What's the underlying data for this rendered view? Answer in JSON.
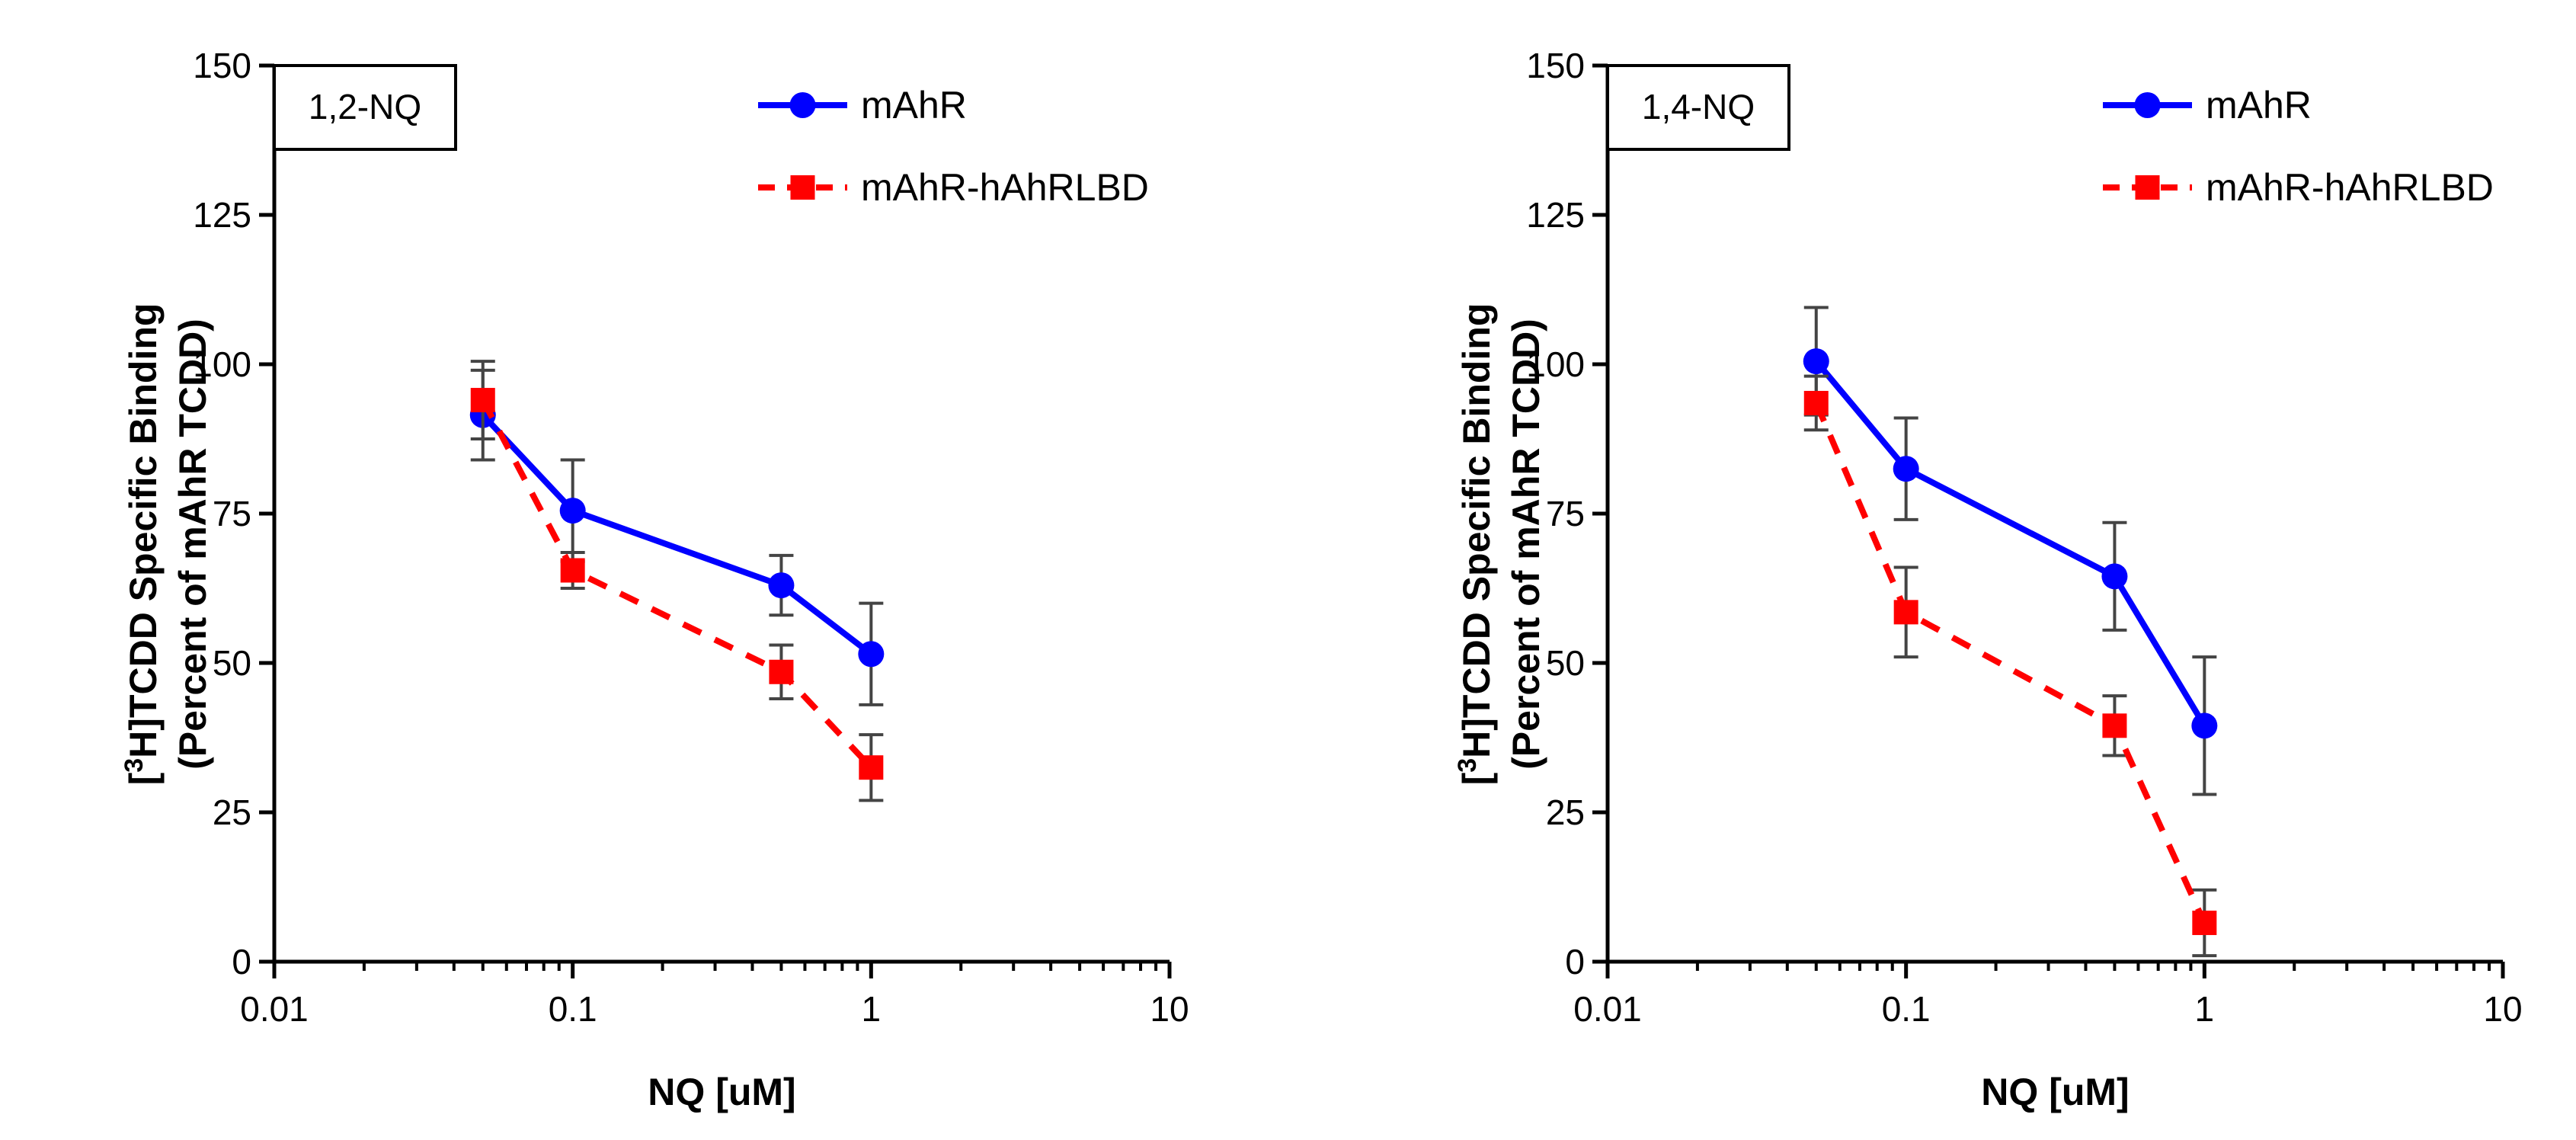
{
  "chart_data": [
    {
      "type": "line",
      "panel_label": "1,2-NQ",
      "xscale": "log",
      "xlim": [
        0.01,
        10
      ],
      "ylim": [
        0,
        150
      ],
      "x_ticks": [
        0.01,
        0.1,
        1,
        10
      ],
      "x_tick_labels": [
        "0.01",
        "0.1",
        "1",
        "10"
      ],
      "y_ticks": [
        0,
        25,
        50,
        75,
        100,
        125,
        150
      ],
      "y_tick_labels": [
        "0",
        "25",
        "50",
        "75",
        "100",
        "125",
        "150"
      ],
      "xlabel": "NQ [uM]",
      "ylabel_line1_prefix": "[",
      "ylabel_line1_sup": "3",
      "ylabel_line1_rest": "H]TCDD Specific Binding",
      "ylabel_line2": "(Percent of mAhR TCDD)",
      "legend_position": "top-right",
      "series": [
        {
          "name": "mAhR",
          "color": "#0000ff",
          "marker": "circle",
          "line_style": "solid",
          "x": [
            0.05,
            0.1,
            0.5,
            1
          ],
          "y": [
            91.5,
            75.5,
            63,
            51.5
          ],
          "err": [
            7.5,
            8.5,
            5,
            8.5
          ]
        },
        {
          "name": "mAhR-hAhRLBD",
          "color": "#ff0000",
          "marker": "square",
          "line_style": "dashed",
          "x": [
            0.05,
            0.1,
            0.5,
            1
          ],
          "y": [
            94,
            65.5,
            48.5,
            32.5
          ],
          "err": [
            6.5,
            3,
            4.5,
            5.5
          ]
        }
      ]
    },
    {
      "type": "line",
      "panel_label": "1,4-NQ",
      "xscale": "log",
      "xlim": [
        0.01,
        10
      ],
      "ylim": [
        0,
        150
      ],
      "x_ticks": [
        0.01,
        0.1,
        1,
        10
      ],
      "x_tick_labels": [
        "0.01",
        "0.1",
        "1",
        "10"
      ],
      "y_ticks": [
        0,
        25,
        50,
        75,
        100,
        125,
        150
      ],
      "y_tick_labels": [
        "0",
        "25",
        "50",
        "75",
        "100",
        "125",
        "150"
      ],
      "xlabel": "NQ [uM]",
      "ylabel_line1_prefix": "[",
      "ylabel_line1_sup": "3",
      "ylabel_line1_rest": "H]TCDD Specific Binding",
      "ylabel_line2": "(Percent of mAhR TCDD)",
      "legend_position": "top-right",
      "series": [
        {
          "name": "mAhR",
          "color": "#0000ff",
          "marker": "circle",
          "line_style": "solid",
          "x": [
            0.05,
            0.1,
            0.5,
            1
          ],
          "y": [
            100.5,
            82.5,
            64.5,
            39.5
          ],
          "err": [
            9,
            8.5,
            9,
            11.5
          ]
        },
        {
          "name": "mAhR-hAhRLBD",
          "color": "#ff0000",
          "marker": "square",
          "line_style": "dashed",
          "x": [
            0.05,
            0.1,
            0.5,
            1
          ],
          "y": [
            93.5,
            58.5,
            39.5,
            6.5
          ],
          "err": [
            4.5,
            7.5,
            5,
            5.5
          ]
        }
      ]
    }
  ]
}
